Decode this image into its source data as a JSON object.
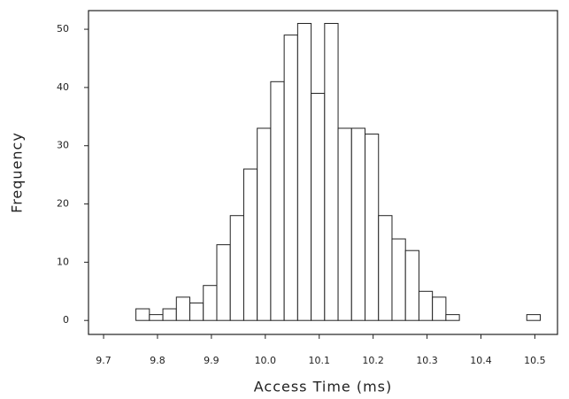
{
  "chart_data": {
    "type": "histogram",
    "xlabel": "Access Time (ms)",
    "ylabel": "Frequency",
    "bins": [
      9.76,
      9.785,
      9.81,
      9.835,
      9.86,
      9.885,
      9.91,
      9.935,
      9.96,
      9.985,
      10.01,
      10.035,
      10.06,
      10.085,
      10.11,
      10.135,
      10.16,
      10.185,
      10.21,
      10.235,
      10.26,
      10.285,
      10.31,
      10.335,
      10.36,
      10.385,
      10.41,
      10.435,
      10.46,
      10.485,
      10.51
    ],
    "values": [
      2,
      1,
      2,
      4,
      3,
      6,
      13,
      18,
      26,
      33,
      41,
      49,
      51,
      39,
      51,
      33,
      33,
      32,
      18,
      14,
      12,
      5,
      4,
      1,
      0,
      0,
      0,
      0,
      0,
      1
    ],
    "color": "#ffffff",
    "xlim": [
      9.672,
      10.542
    ],
    "xticks": [
      9.7,
      9.8,
      9.9,
      {
        "value": 10.0,
        "label": "10.0"
      },
      10.1,
      10.2,
      10.3,
      10.4,
      10.5
    ],
    "ylim": [
      -2.4,
      53.2
    ],
    "yticks": [
      0,
      10,
      20,
      30,
      40,
      50
    ]
  }
}
